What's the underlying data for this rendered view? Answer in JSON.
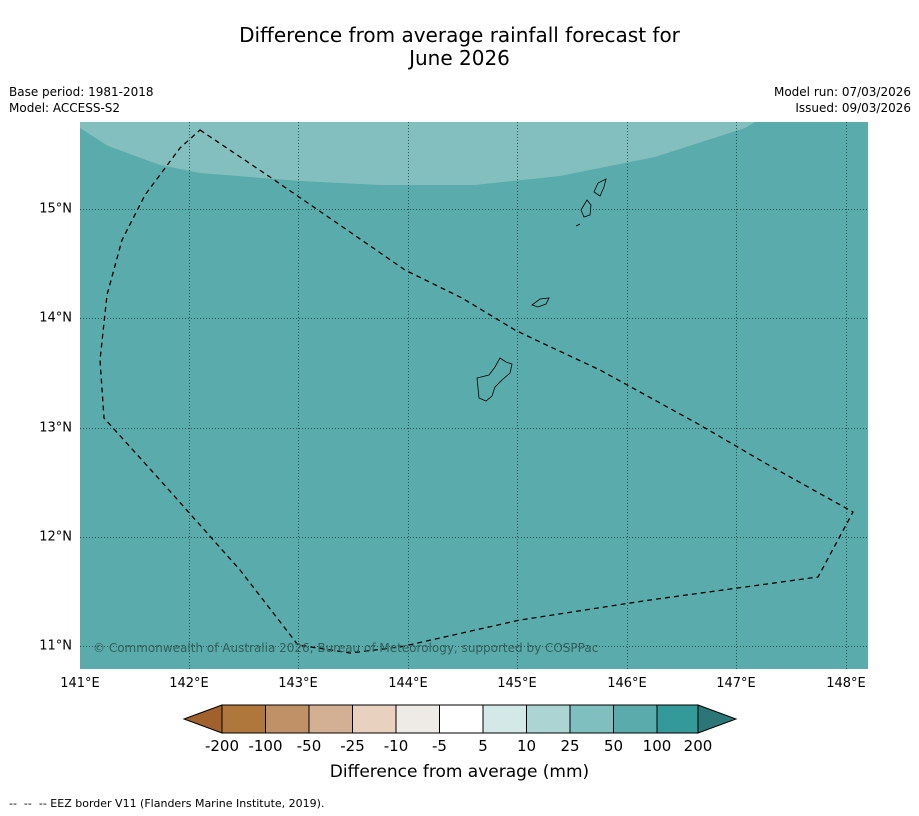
{
  "title_line1": "Difference from average rainfall forecast for",
  "title_line2": "June 2026",
  "meta_left": [
    "Base period: 1981-2018",
    "Model: ACCESS-S2"
  ],
  "meta_right": [
    "Model run: 07/03/2026",
    "Issued: 09/03/2026"
  ],
  "x_ticks": [
    "141°E",
    "142°E",
    "143°E",
    "144°E",
    "145°E",
    "146°E",
    "147°E",
    "148°E"
  ],
  "y_ticks": [
    "15°N",
    "14°N",
    "13°N",
    "12°N",
    "11°N"
  ],
  "map": {
    "lon_range": [
      141,
      148.2
    ],
    "lat_range": [
      10.8,
      15.8
    ],
    "background_category": "50 to 100",
    "background_color": "#5aabab",
    "upper_band_category": "25 to 50",
    "upper_band_color": "#83bfbf",
    "copyright": "© Commonwealth of Australia 2026, Bureau of Meteorology, supported by COSPPac"
  },
  "colorbar": {
    "labels": [
      "-200",
      "-100",
      "-50",
      "-25",
      "-10",
      "-5",
      "5",
      "10",
      "25",
      "50",
      "100",
      "200"
    ],
    "colors": [
      "#a0612c",
      "#b0773d",
      "#c09167",
      "#d3b093",
      "#e8d1bf",
      "#eeeae5",
      "#ffffff",
      "#d3e9e8",
      "#abd4d3",
      "#80bfbf",
      "#5aabab",
      "#339999",
      "#2b7676"
    ],
    "title": "Difference from average (mm)"
  },
  "footnote": "--  --  -- EEZ border V11 (Flanders Marine Institute, 2019)."
}
